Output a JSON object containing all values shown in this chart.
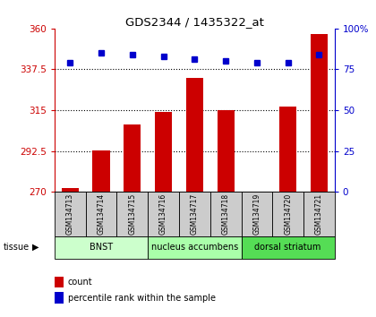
{
  "title": "GDS2344 / 1435322_at",
  "samples": [
    "GSM134713",
    "GSM134714",
    "GSM134715",
    "GSM134716",
    "GSM134717",
    "GSM134718",
    "GSM134719",
    "GSM134720",
    "GSM134721"
  ],
  "bar_values": [
    272,
    293,
    307,
    314,
    333,
    315,
    270,
    317,
    357
  ],
  "percentile_values": [
    79,
    85,
    84,
    83,
    81,
    80,
    79,
    79,
    84
  ],
  "bar_color": "#cc0000",
  "percentile_color": "#0000cc",
  "ylim_left": [
    270,
    360
  ],
  "ylim_right": [
    0,
    100
  ],
  "yticks_left": [
    270,
    292.5,
    315,
    337.5,
    360
  ],
  "yticks_right": [
    0,
    25,
    50,
    75,
    100
  ],
  "ytick_labels_left": [
    "270",
    "292.5",
    "315",
    "337.5",
    "360"
  ],
  "ytick_labels_right": [
    "0",
    "25",
    "50",
    "75",
    "100%"
  ],
  "groups": [
    {
      "label": "BNST",
      "start": 0,
      "end": 2,
      "color": "#ccffcc"
    },
    {
      "label": "nucleus accumbens",
      "start": 3,
      "end": 5,
      "color": "#aaffaa"
    },
    {
      "label": "dorsal striatum",
      "start": 6,
      "end": 8,
      "color": "#55dd55"
    }
  ],
  "tissue_label": "tissue",
  "legend_count_label": "count",
  "legend_percentile_label": "percentile rank within the sample",
  "left_axis_color": "#cc0000",
  "right_axis_color": "#0000cc",
  "sample_box_color": "#cccccc",
  "bar_width": 0.55
}
